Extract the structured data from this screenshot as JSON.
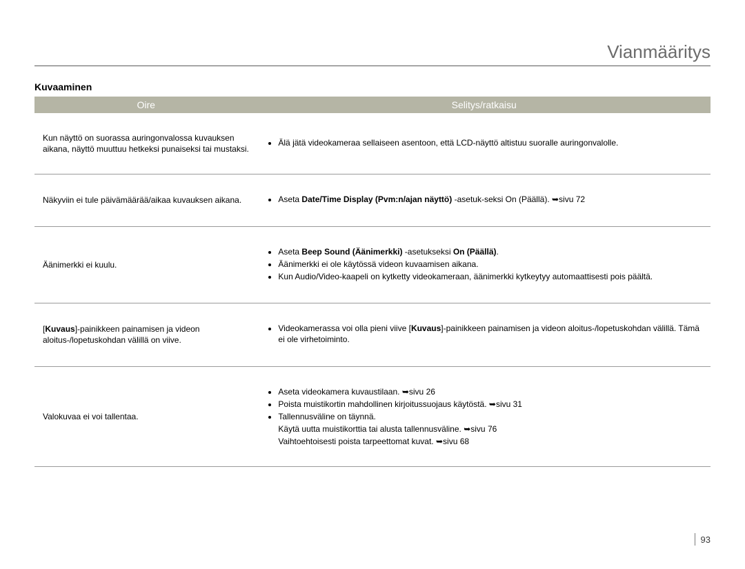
{
  "section_title": "Vianmääritys",
  "subsection": "Kuvaaminen",
  "headers": {
    "oire": "Oire",
    "ratkaisu": "Selitys/ratkaisu"
  },
  "rows": [
    {
      "symptom": "Kun näyttö on suorassa auringonvalossa kuvauksen aikana, näyttö muuttuu hetkeksi punaiseksi tai mustaksi.",
      "items": [
        {
          "text": "Älä jätä videokameraa sellaiseen asentoon, että LCD-näyttö altistuu suoralle auringonvalolle."
        }
      ]
    },
    {
      "symptom": "Näkyviin ei tule päivämäärää/aikaa kuvauksen aikana.",
      "items": [
        {
          "pre": "Aseta ",
          "bold": "Date/Time Display (Pvm:n/ajan näyttö)",
          "post": " -asetuk-seksi On (Päällä). ",
          "arrow": true,
          "page": "sivu 72"
        }
      ]
    },
    {
      "symptom": "Äänimerkki ei kuulu.",
      "items": [
        {
          "pre": "Aseta ",
          "bold": "Beep Sound (Äänimerkki)",
          "mid": " -asetukseksi ",
          "bold2": "On (Päällä)",
          "post": "."
        },
        {
          "text": "Äänimerkki ei ole käytössä videon kuvaamisen aikana."
        },
        {
          "text": "Kun Audio/Video-kaapeli on kytketty videokameraan, äänimerkki kytkeytyy automaattisesti pois päältä."
        }
      ]
    },
    {
      "symptom_pre": "[",
      "symptom_bold": "Kuvaus",
      "symptom_post": "]-painikkeen painamisen ja videon aloitus-/lopetuskohdan välillä on viive.",
      "items": [
        {
          "pre": "Videokamerassa voi olla pieni viive [",
          "bold": "Kuvaus",
          "post": "]-painikkeen painamisen ja videon aloitus-/lopetuskohdan välillä. Tämä ei ole virhetoiminto."
        }
      ]
    },
    {
      "symptom": "Valokuvaa ei voi tallentaa.",
      "items": [
        {
          "text": "Aseta videokamera kuvaustilaan. ",
          "arrow": true,
          "page": "sivu 26"
        },
        {
          "text": "Poista muistikortin mahdollinen kirjoitussuojaus käytöstä. ",
          "arrow": true,
          "page": "sivu 31"
        },
        {
          "text": "Tallennusväline on täynnä."
        }
      ],
      "notes": [
        {
          "text": "Käytä uutta muistikorttia tai alusta tallennusväline. ",
          "arrow": true,
          "page": "sivu 76"
        },
        {
          "text": "Vaihtoehtoisesti poista tarpeettomat kuvat. ",
          "arrow": true,
          "page": "sivu 68"
        }
      ]
    }
  ],
  "page_number": "93",
  "arrow_glyph": "➥",
  "colors": {
    "header_bg": "#b5b5a5",
    "header_text": "#ffffff",
    "title_text": "#6b6b6b",
    "rule": "#5a5a5a",
    "row_border": "#9a9a9a"
  }
}
